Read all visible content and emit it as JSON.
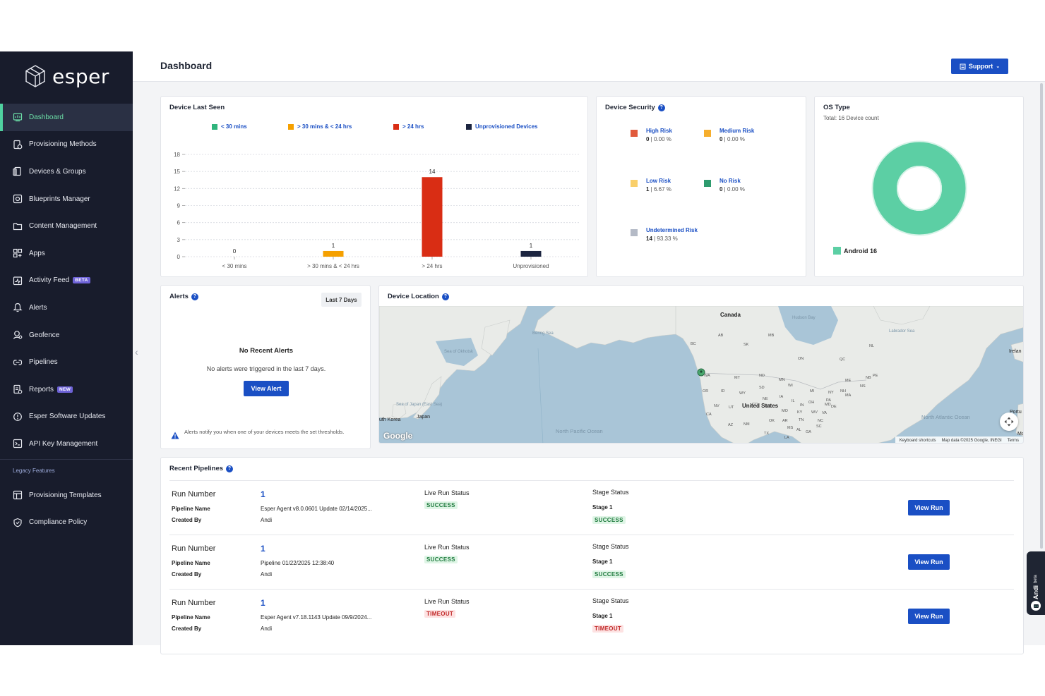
{
  "brand": {
    "name": "esper"
  },
  "sidebar": {
    "items": [
      {
        "label": "Dashboard",
        "icon": "dashboard-icon",
        "active": true
      },
      {
        "label": "Provisioning Methods",
        "icon": "provisioning-icon"
      },
      {
        "label": "Devices & Groups",
        "icon": "devices-icon"
      },
      {
        "label": "Blueprints Manager",
        "icon": "blueprint-icon"
      },
      {
        "label": "Content Management",
        "icon": "folder-icon"
      },
      {
        "label": "Apps",
        "icon": "apps-icon"
      },
      {
        "label": "Activity Feed",
        "icon": "activity-icon",
        "badge": "BETA"
      },
      {
        "label": "Alerts",
        "icon": "bell-icon"
      },
      {
        "label": "Geofence",
        "icon": "geofence-icon"
      },
      {
        "label": "Pipelines",
        "icon": "pipelines-icon"
      },
      {
        "label": "Reports",
        "icon": "reports-icon",
        "badge": "NEW"
      },
      {
        "label": "Esper Software Updates",
        "icon": "update-icon"
      },
      {
        "label": "API Key Management",
        "icon": "api-key-icon"
      }
    ],
    "legacy_label": "Legacy Features",
    "legacy_items": [
      {
        "label": "Provisioning Templates",
        "icon": "template-icon"
      },
      {
        "label": "Compliance Policy",
        "icon": "shield-icon"
      }
    ]
  },
  "header": {
    "title": "Dashboard",
    "support_label": "Support"
  },
  "device_last_seen": {
    "title": "Device Last Seen",
    "legend": [
      {
        "label": "< 30 mins",
        "color": "#2fb47c"
      },
      {
        "label": "> 30 mins & < 24 hrs",
        "color": "#f5a000"
      },
      {
        "label": "> 24 hrs",
        "color": "#d92d14"
      },
      {
        "label": "Unprovisioned Devices",
        "color": "#1c2540"
      }
    ]
  },
  "chart_data": {
    "type": "bar",
    "categories": [
      "< 30 mins",
      "> 30 mins & < 24 hrs",
      "> 24 hrs",
      "Unprovisioned"
    ],
    "values": [
      0,
      1,
      14,
      1
    ],
    "colors": [
      "#2fb47c",
      "#f5a000",
      "#d92d14",
      "#1c2540"
    ],
    "ylim": [
      0,
      18
    ],
    "yticks": [
      0,
      3,
      6,
      9,
      12,
      15,
      18
    ],
    "grid": true,
    "legend_position": "top"
  },
  "device_security": {
    "title": "Device Security",
    "items": [
      {
        "name": "High Risk",
        "count": "0",
        "pct": " | 0.00 %",
        "color": "#e15a3c"
      },
      {
        "name": "Medium Risk",
        "count": "0",
        "pct": " | 0.00 %",
        "color": "#f6ae2d"
      },
      {
        "name": "Low Risk",
        "count": "1",
        "pct": " | 6.67 %",
        "color": "#f9cf6a"
      },
      {
        "name": "No Risk",
        "count": "0",
        "pct": " | 0.00 %",
        "color": "#2e9b6e"
      },
      {
        "name": "Undetermined Risk",
        "count": "14",
        "pct": " | 93.33 %",
        "color": "#b4bac6"
      }
    ]
  },
  "os_type": {
    "title": "OS Type",
    "subtitle": "Total: 16 Device count",
    "legend_label": "Android 16",
    "color": "#5ccfa4"
  },
  "alerts": {
    "title": "Alerts",
    "range_label": "Last 7 Days",
    "empty_title": "No Recent Alerts",
    "empty_text": "No alerts were triggered in the last 7 days.",
    "view_label": "View Alert",
    "note": "Alerts notify you when one of your devices meets the set thresholds."
  },
  "device_location": {
    "title": "Device Location",
    "labels": {
      "canada": "Canada",
      "us": "United States",
      "japan": "Japan",
      "korea": "uth Korea",
      "bering": "Bering Sea",
      "hudson": "Hudson Bay",
      "labrador": "Labrador Sea",
      "sea_okhotsk": "Sea of Okhotsk",
      "sea_japan": "Sea of Japan (East Sea)",
      "n_pacific": "North Pacific Ocean",
      "n_atlantic": "North Atlantic Ocean",
      "ireland": "Irelan",
      "portugal": "Portu",
      "mo": "Mo"
    },
    "states": [
      "AB",
      "MB",
      "SK",
      "BC",
      "ON",
      "QC",
      "NL",
      "NB",
      "PE",
      "NS",
      "WA",
      "MT",
      "ND",
      "MN",
      "OR",
      "ID",
      "WY",
      "SD",
      "WI",
      "MI",
      "NY",
      "NH",
      "ME",
      "NE",
      "IA",
      "PA",
      "MA",
      "NV",
      "UT",
      "IL",
      "IN",
      "OH",
      "MD",
      "DE",
      "CA",
      "CO",
      "KS",
      "MO",
      "KY",
      "WV",
      "VA",
      "AZ",
      "NM",
      "OK",
      "AR",
      "TN",
      "NC",
      "TX",
      "MS",
      "AL",
      "GA",
      "SC",
      "LA"
    ],
    "google": "Google",
    "attribution": [
      "Keyboard shortcuts",
      "Map data ©2025 Google, INEGI",
      "Terms"
    ]
  },
  "recent_pipelines": {
    "title": "Recent Pipelines",
    "run_label": "Run Number",
    "pipeline_label": "Pipeline Name",
    "created_label": "Created By",
    "live_status_label": "Live Run Status",
    "stage_status_label": "Stage Status",
    "view_label": "View Run",
    "rows": [
      {
        "number": "1",
        "pipeline": "Esper Agent v8.0.0601 Update 02/14/2025...",
        "creator": "Andi",
        "live_status": "SUCCESS",
        "stage": "Stage 1",
        "stage_status": "SUCCESS"
      },
      {
        "number": "1",
        "pipeline": "Pipeline 01/22/2025 12:38:40",
        "creator": "Andi",
        "live_status": "SUCCESS",
        "stage": "Stage 1",
        "stage_status": "SUCCESS"
      },
      {
        "number": "1",
        "pipeline": "Esper Agent v7.18.1143 Update 09/9/2024...",
        "creator": "Andi",
        "live_status": "TIMEOUT",
        "stage": "Stage 1",
        "stage_status": "TIMEOUT"
      }
    ]
  },
  "andi": {
    "label": "Andi",
    "badge": "beta"
  }
}
